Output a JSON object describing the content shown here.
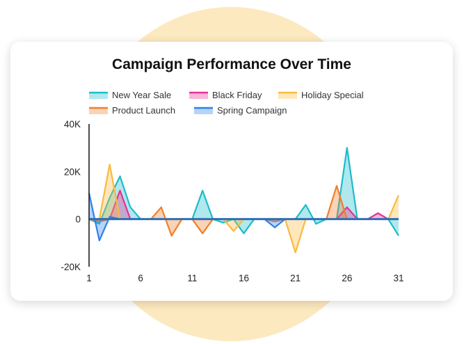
{
  "chart_data": {
    "type": "area",
    "title": "Campaign Performance Over Time",
    "xlabel": "",
    "ylabel": "",
    "xlim": [
      1,
      31
    ],
    "ylim": [
      -20000,
      40000
    ],
    "x_ticks": [
      "1",
      "6",
      "11",
      "16",
      "21",
      "26",
      "31"
    ],
    "y_ticks": [
      "40K",
      "20K",
      "0",
      "-20K"
    ],
    "legend_position": "top",
    "grid": false,
    "x": [
      1,
      2,
      3,
      4,
      5,
      6,
      7,
      8,
      9,
      10,
      11,
      12,
      13,
      14,
      15,
      16,
      17,
      18,
      19,
      20,
      21,
      22,
      23,
      24,
      25,
      26,
      27,
      28,
      29,
      30,
      31
    ],
    "series": [
      {
        "name": "New Year Sale",
        "color": "#1cbccb",
        "values": [
          0,
          -2000,
          9000,
          18000,
          5000,
          0,
          0,
          0,
          0,
          0,
          0,
          12000,
          0,
          -1500,
          0,
          -6000,
          0,
          0,
          0,
          0,
          0,
          6000,
          -2000,
          0,
          0,
          30000,
          0,
          0,
          0,
          0,
          -7000
        ]
      },
      {
        "name": "Black Friday",
        "color": "#ea2e97",
        "values": [
          0,
          0,
          0,
          12000,
          0,
          0,
          0,
          0,
          0,
          0,
          0,
          0,
          0,
          0,
          0,
          0,
          0,
          0,
          0,
          0,
          0,
          0,
          0,
          0,
          0,
          5000,
          0,
          0,
          2500,
          0,
          0
        ]
      },
      {
        "name": "Holiday Special",
        "color": "#fbb93e",
        "values": [
          0,
          0,
          23000,
          0,
          0,
          0,
          0,
          0,
          0,
          0,
          0,
          0,
          0,
          0,
          -5000,
          0,
          0,
          0,
          0,
          0,
          -14000,
          0,
          0,
          0,
          0,
          0,
          0,
          0,
          0,
          0,
          10000
        ]
      },
      {
        "name": "Product Launch",
        "color": "#f07f2a",
        "values": [
          0,
          -1000,
          0,
          0,
          0,
          0,
          0,
          5000,
          -7000,
          0,
          0,
          -6000,
          0,
          0,
          0,
          0,
          0,
          0,
          -1000,
          0,
          0,
          0,
          0,
          0,
          14000,
          0,
          0,
          0,
          0,
          0,
          0
        ]
      },
      {
        "name": "Spring Campaign",
        "color": "#2f80ed",
        "values": [
          11000,
          -9000,
          1000,
          0,
          0,
          0,
          0,
          0,
          0,
          0,
          0,
          0,
          0,
          0,
          0,
          0,
          0,
          0,
          -3500,
          0,
          0,
          0,
          0,
          0,
          0,
          0,
          0,
          0,
          0,
          0,
          0
        ]
      }
    ]
  }
}
